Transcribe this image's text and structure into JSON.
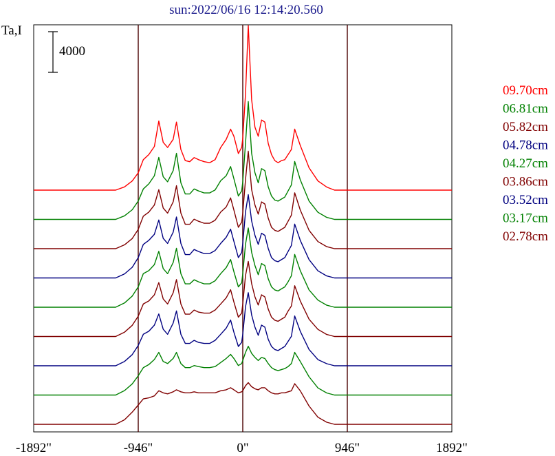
{
  "chart_data": {
    "type": "line",
    "title": "sun:2022/06/16 12:14:20.560",
    "ylabel": "Ta,I",
    "scale_bar_label": "4000",
    "x_ticks": [
      "-1892\"",
      "-946\"",
      "0\"",
      "946\"",
      "1892\""
    ],
    "x_tick_values": [
      -1892,
      -946,
      0,
      946,
      1892
    ],
    "vlines": [
      -946,
      0,
      946
    ],
    "xlim": [
      -1892,
      1892
    ],
    "x": [
      -1892,
      -1300,
      -1150,
      -1070,
      -1000,
      -946,
      -900,
      -850,
      -800,
      -760,
      -720,
      -680,
      -630,
      -600,
      -560,
      -520,
      -480,
      -440,
      -400,
      -350,
      -300,
      -250,
      -200,
      -150,
      -110,
      -80,
      -40,
      -10,
      0,
      25,
      50,
      80,
      110,
      140,
      170,
      200,
      230,
      260,
      290,
      320,
      350,
      380,
      410,
      440,
      470,
      520,
      600,
      680,
      760,
      830,
      870,
      890,
      920,
      946,
      970,
      1000,
      1050,
      1100,
      1150,
      1200,
      1300,
      1892
    ],
    "series": [
      {
        "name": "09.70cm",
        "color": "#ff0000",
        "values": [
          0,
          0,
          0,
          320,
          900,
          1700,
          3000,
          3500,
          4300,
          6800,
          4700,
          4200,
          5000,
          6700,
          4000,
          2900,
          2800,
          3200,
          3000,
          2800,
          2700,
          3000,
          4200,
          5000,
          6000,
          5300,
          3600,
          4200,
          5100,
          9500,
          16200,
          8900,
          6200,
          5300,
          6900,
          6700,
          4600,
          3500,
          2900,
          2700,
          2900,
          3000,
          3500,
          4000,
          6000,
          4400,
          2200,
          900,
          300,
          0,
          0,
          0,
          0,
          0,
          0,
          0,
          0,
          0,
          0,
          0,
          0,
          0
        ]
      },
      {
        "name": "06.81cm",
        "color": "#008000",
        "values": [
          0,
          0,
          0,
          350,
          950,
          1800,
          3000,
          3500,
          4300,
          6100,
          4200,
          3700,
          4800,
          6500,
          3600,
          2500,
          2500,
          3000,
          2800,
          2600,
          2600,
          2900,
          3800,
          4300,
          5200,
          4000,
          2300,
          2800,
          3700,
          7500,
          11600,
          6500,
          4600,
          3600,
          5000,
          4800,
          3200,
          2300,
          1900,
          1800,
          2000,
          2200,
          2800,
          3400,
          5700,
          3900,
          1800,
          700,
          200,
          0,
          0,
          0,
          0,
          0,
          0,
          0,
          0,
          0,
          0,
          0,
          0,
          0
        ]
      },
      {
        "name": "05.82cm",
        "color": "#800000",
        "values": [
          0,
          0,
          0,
          380,
          1000,
          1900,
          3200,
          3600,
          4300,
          5800,
          4000,
          3500,
          4600,
          6200,
          3500,
          2400,
          2400,
          2900,
          2700,
          2500,
          2500,
          2800,
          3600,
          4100,
          5000,
          3800,
          2100,
          2600,
          3500,
          6800,
          9600,
          5800,
          4300,
          3400,
          4600,
          4400,
          3000,
          2100,
          1800,
          1700,
          1900,
          2100,
          2700,
          3300,
          5500,
          3800,
          1800,
          700,
          200,
          0,
          0,
          0,
          0,
          0,
          0,
          0,
          0,
          0,
          0,
          0,
          0,
          0
        ]
      },
      {
        "name": "04.78cm",
        "color": "#000080",
        "values": [
          0,
          0,
          0,
          400,
          1050,
          2000,
          3300,
          3700,
          4300,
          5700,
          3900,
          3400,
          4500,
          6000,
          3400,
          2300,
          2300,
          2800,
          2600,
          2400,
          2400,
          2700,
          3400,
          4000,
          4800,
          3600,
          2000,
          2500,
          3400,
          6500,
          8200,
          5600,
          4200,
          3300,
          4400,
          4200,
          2900,
          2000,
          1700,
          1600,
          1800,
          2000,
          2600,
          3200,
          5300,
          3700,
          1800,
          700,
          200,
          0,
          0,
          0,
          0,
          0,
          0,
          0,
          0,
          0,
          0,
          0,
          0,
          0
        ]
      },
      {
        "name": "04.27cm",
        "color": "#008000",
        "values": [
          0,
          0,
          0,
          420,
          1100,
          2000,
          3300,
          3600,
          4200,
          5500,
          3800,
          3300,
          4400,
          5800,
          3300,
          2300,
          2300,
          2700,
          2500,
          2300,
          2300,
          2600,
          3300,
          3900,
          4700,
          3500,
          2000,
          2400,
          3300,
          6200,
          7800,
          5400,
          4100,
          3200,
          4300,
          4100,
          2800,
          2000,
          1700,
          1600,
          1800,
          2000,
          2500,
          3100,
          5200,
          3600,
          1700,
          700,
          200,
          0,
          0,
          0,
          0,
          0,
          0,
          0,
          0,
          0,
          0,
          0,
          0,
          0
        ]
      },
      {
        "name": "03.86cm",
        "color": "#800000",
        "values": [
          0,
          0,
          0,
          430,
          1100,
          2000,
          3200,
          3500,
          4100,
          5300,
          3700,
          3200,
          4300,
          5600,
          3200,
          2200,
          2200,
          2600,
          2400,
          2300,
          2300,
          2600,
          3200,
          3800,
          4600,
          3400,
          1900,
          2300,
          3200,
          6000,
          7400,
          5200,
          3900,
          3100,
          4100,
          3900,
          2700,
          1900,
          1600,
          1500,
          1700,
          1900,
          2500,
          3000,
          5000,
          3500,
          1700,
          700,
          200,
          0,
          0,
          0,
          0,
          0,
          0,
          0,
          0,
          0,
          0,
          0,
          0,
          0
        ]
      },
      {
        "name": "03.52cm",
        "color": "#000080",
        "values": [
          0,
          0,
          0,
          430,
          1100,
          2000,
          3100,
          3400,
          4000,
          5100,
          3600,
          3100,
          4200,
          5400,
          3100,
          2200,
          2200,
          2500,
          2300,
          2200,
          2200,
          2500,
          3100,
          3700,
          4500,
          3300,
          1900,
          2300,
          3100,
          5800,
          7200,
          5000,
          3800,
          3000,
          4000,
          3800,
          2600,
          1900,
          1600,
          1500,
          1700,
          1900,
          2400,
          2900,
          4900,
          3400,
          1600,
          600,
          200,
          0,
          0,
          0,
          0,
          0,
          0,
          0,
          0,
          0,
          0,
          0,
          0,
          0
        ]
      },
      {
        "name": "03.17cm",
        "color": "#008000",
        "values": [
          0,
          0,
          0,
          440,
          1100,
          1900,
          2700,
          3000,
          3500,
          4200,
          3300,
          3100,
          3600,
          4200,
          3100,
          2700,
          2700,
          2900,
          2800,
          2700,
          2700,
          2800,
          3200,
          3600,
          4000,
          3600,
          2900,
          3100,
          3400,
          4200,
          4800,
          4100,
          3700,
          3400,
          3700,
          3600,
          3100,
          2700,
          2500,
          2400,
          2500,
          2600,
          2800,
          3100,
          4200,
          3300,
          1800,
          700,
          200,
          0,
          0,
          0,
          0,
          0,
          0,
          0,
          0,
          0,
          0,
          0,
          0,
          0
        ]
      },
      {
        "name": "02.78cm",
        "color": "#800000",
        "values": [
          0,
          0,
          0,
          450,
          1200,
          1900,
          2500,
          2600,
          2800,
          3300,
          3100,
          3000,
          3200,
          3400,
          3200,
          3100,
          3100,
          3200,
          3100,
          3100,
          3100,
          3100,
          3300,
          3400,
          3600,
          3400,
          3100,
          3200,
          3300,
          3800,
          4100,
          3700,
          3500,
          3400,
          3600,
          3600,
          3300,
          3100,
          3000,
          3000,
          3100,
          3100,
          3200,
          3300,
          4000,
          3300,
          1800,
          700,
          200,
          0,
          0,
          0,
          0,
          0,
          0,
          0,
          0,
          0,
          0,
          0,
          0,
          0
        ]
      }
    ],
    "grid": false,
    "legend": "right"
  }
}
